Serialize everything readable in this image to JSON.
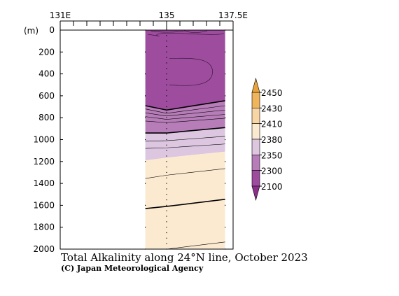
{
  "chart_data": {
    "type": "heatmap",
    "title": "Total Alkalinity along 24°N line, October 2023",
    "credit": "(C) Japan Meteorological Agency",
    "x_axis": {
      "range": [
        131,
        137.5
      ],
      "tick_labels": [
        {
          "value": 131,
          "label": "131E"
        },
        {
          "value": 135,
          "label": "135"
        },
        {
          "value": 137.5,
          "label": "137.5E"
        }
      ],
      "minor_ticks": [
        131,
        131.5,
        132,
        132.5,
        133,
        133.5,
        134,
        134.5,
        135,
        135.5,
        136,
        136.5,
        137,
        137.5
      ]
    },
    "y_axis": {
      "unit_label": "(m)",
      "range": [
        0,
        2000
      ],
      "inverted": true,
      "ticks": [
        0,
        200,
        400,
        600,
        800,
        1000,
        1200,
        1400,
        1600,
        1800,
        2000
      ],
      "tick_labels": [
        "0",
        "200",
        "400",
        "600",
        "800",
        "1000",
        "1200",
        "1400",
        "1600",
        "1800",
        "2000"
      ]
    },
    "data_lon_range": [
      134.2,
      137.2
    ],
    "legend": {
      "position": "right",
      "bins": [
        {
          "color": "#8B2F8B",
          "max": 2100
        },
        {
          "color": "#9E4C9E",
          "min": 2100,
          "max": 2300
        },
        {
          "color": "#B77DB8",
          "min": 2300,
          "max": 2350
        },
        {
          "color": "#DCC6E0",
          "min": 2350,
          "max": 2380
        },
        {
          "color": "#FCEAD0",
          "min": 2380,
          "max": 2410
        },
        {
          "color": "#F8D5A4",
          "min": 2410,
          "max": 2430
        },
        {
          "color": "#F0B45C",
          "min": 2430,
          "max": 2450
        },
        {
          "color": "#E8A33A",
          "min": 2450
        }
      ],
      "labels": [
        "2450",
        "2430",
        "2410",
        "2380",
        "2350",
        "2300",
        "2100"
      ]
    },
    "fill_layers": [
      {
        "color": "#9E4C9E",
        "top_depth": [
          0,
          0,
          0
        ],
        "bottom_depth": [
          690,
          730,
          645
        ]
      },
      {
        "color": "#B77DB8",
        "top_depth": [
          690,
          730,
          645
        ],
        "bottom_depth": [
          940,
          940,
          890
        ]
      },
      {
        "color": "#DCC6E0",
        "top_depth": [
          940,
          940,
          890
        ],
        "bottom_depth": [
          1190,
          1165,
          1110
        ]
      },
      {
        "color": "#FCEAD0",
        "top_depth": [
          1190,
          1165,
          1110
        ],
        "bottom_depth": [
          2000,
          2000,
          2000
        ]
      }
    ],
    "contour_lines": [
      {
        "level": 2300,
        "bold": true,
        "depth": [
          690,
          730,
          645
        ]
      },
      {
        "level": 2310,
        "bold": false,
        "depth": [
          720,
          760,
          690
        ]
      },
      {
        "level": 2320,
        "bold": false,
        "depth": [
          755,
          785,
          730
        ]
      },
      {
        "level": 2330,
        "bold": false,
        "depth": [
          790,
          815,
          770
        ]
      },
      {
        "level": 2340,
        "bold": false,
        "depth": [
          830,
          845,
          805
        ]
      },
      {
        "level": 2350,
        "bold": true,
        "depth": [
          940,
          940,
          890
        ]
      },
      {
        "level": 2360,
        "bold": false,
        "depth": [
          1015,
          1010,
          970
        ]
      },
      {
        "level": 2370,
        "bold": false,
        "depth": [
          1080,
          1075,
          1040
        ]
      },
      {
        "level": 2390,
        "bold": false,
        "depth": [
          1355,
          1325,
          1265
        ]
      },
      {
        "level": 2400,
        "bold": true,
        "depth": [
          1630,
          1610,
          1545
        ]
      },
      {
        "level": 2410,
        "bold": false,
        "depth": [
          2000,
          2000,
          1935
        ]
      }
    ]
  }
}
